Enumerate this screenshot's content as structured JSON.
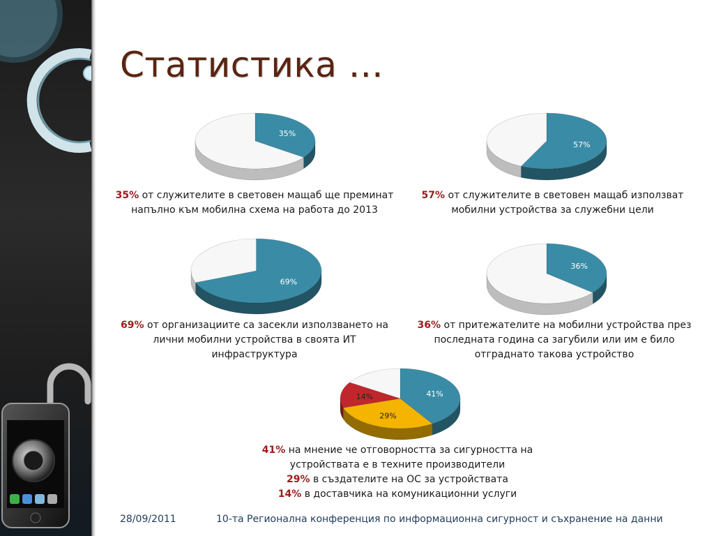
{
  "slide": {
    "title": "Статистика …",
    "footer": {
      "date": "28/09/2011",
      "conference": "10-та Регионална конференция по информационна сигурност и съхранение на данни"
    }
  },
  "colors": {
    "teal": "#3a8ca6",
    "white": "#f7f7f7",
    "red": "#c0272d",
    "gold": "#f4b400",
    "percent_text": "#9b1c1c",
    "title": "#5a2410"
  },
  "charts": [
    {
      "label": "35%",
      "caption_pct": "35%",
      "caption_text": "от служителите в световен мащаб ще преминат",
      "caption_line2": "напълно към мобилна схема на работа до 2013"
    },
    {
      "label": "57%",
      "caption_pct": "57%",
      "caption_text": "от служителите в световен мащаб използват",
      "caption_line2": "мобилни устройства за служебни цели"
    },
    {
      "label": "69%",
      "caption_pct": "69%",
      "caption_text": "от организациите са засекли използването на",
      "caption_line2": "лични мобилни устройства в своята ИТ",
      "caption_line3": "инфраструктура"
    },
    {
      "label": "36%",
      "caption_pct": "36%",
      "caption_text": "от притежателите на мобилни устройства през",
      "caption_line2": "последната година са загубили или им е било",
      "caption_line3": "отграднато такова устройство"
    },
    {
      "labels": [
        "41%",
        "29%",
        "14%"
      ],
      "lines": [
        {
          "pct": "41%",
          "text": "на мнение че отговорността за сигурността на"
        },
        {
          "pct": "",
          "text": "устройствата е в техните производители"
        },
        {
          "pct": "29%",
          "text": "в създателите на ОС за устройствата"
        },
        {
          "pct": "14%",
          "text": "в доставчика на комуникационни услуги"
        }
      ]
    }
  ],
  "chart_data": [
    {
      "type": "pie",
      "values": [
        35,
        65
      ],
      "labels": [
        "35%",
        ""
      ],
      "colors": [
        "#3a8ca6",
        "#f7f7f7"
      ]
    },
    {
      "type": "pie",
      "values": [
        57,
        43
      ],
      "labels": [
        "57%",
        ""
      ],
      "colors": [
        "#3a8ca6",
        "#f7f7f7"
      ]
    },
    {
      "type": "pie",
      "values": [
        69,
        31
      ],
      "labels": [
        "69%",
        ""
      ],
      "colors": [
        "#3a8ca6",
        "#f7f7f7"
      ]
    },
    {
      "type": "pie",
      "values": [
        36,
        64
      ],
      "labels": [
        "36%",
        ""
      ],
      "colors": [
        "#3a8ca6",
        "#f7f7f7"
      ]
    },
    {
      "type": "pie",
      "values": [
        41,
        29,
        14,
        16
      ],
      "labels": [
        "41%",
        "29%",
        "14%",
        ""
      ],
      "colors": [
        "#3a8ca6",
        "#f4b400",
        "#c0272d",
        "#f7f7f7"
      ]
    }
  ]
}
